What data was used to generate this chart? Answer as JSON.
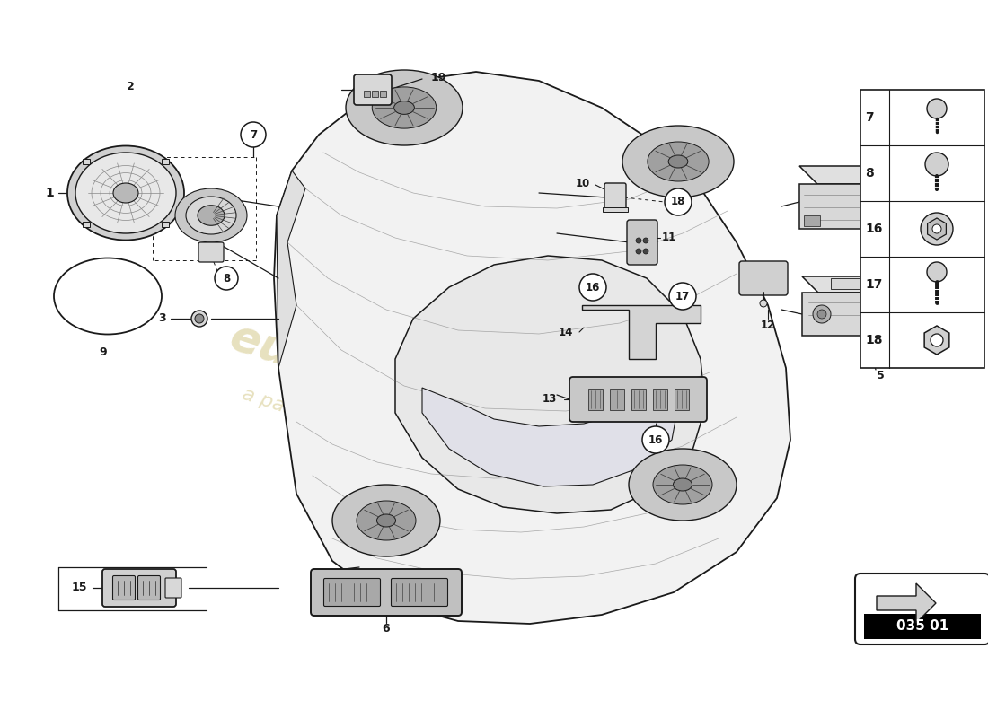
{
  "bg_color": "#ffffff",
  "line_color": "#1a1a1a",
  "mid_gray": "#888888",
  "dark_gray": "#444444",
  "light_fill": "#f2f2f2",
  "med_fill": "#d8d8d8",
  "dark_fill": "#aaaaaa",
  "watermark_color": "#d4c88a",
  "watermark_alpha": 0.55,
  "part_code": "035 01",
  "right_panel_items": [
    {
      "num": 18,
      "type": "hex_nut"
    },
    {
      "num": 17,
      "type": "bolt"
    },
    {
      "num": 16,
      "type": "flange_nut"
    },
    {
      "num": 8,
      "type": "screw_washer"
    },
    {
      "num": 7,
      "type": "screw"
    }
  ]
}
